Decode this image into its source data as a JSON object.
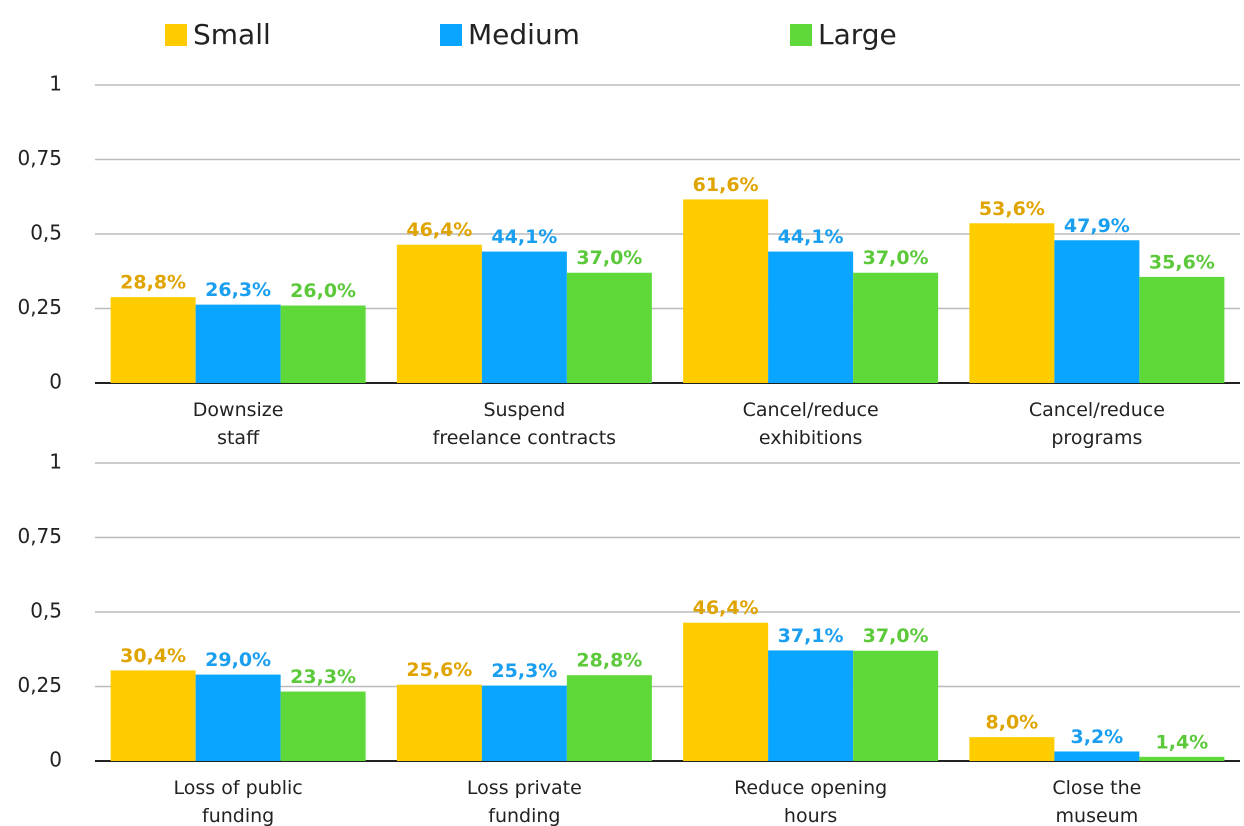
{
  "chart_data": [
    {
      "type": "bar",
      "categories": [
        [
          "Downsize",
          "staff"
        ],
        [
          "Suspend",
          "freelance contracts"
        ],
        [
          "Cancel/reduce",
          "exhibitions"
        ],
        [
          "Cancel/reduce",
          "programs"
        ]
      ],
      "series": [
        {
          "name": "Small",
          "color": "#ffcc00",
          "label_color": "#e0a400",
          "values": [
            0.288,
            0.464,
            0.616,
            0.536
          ],
          "value_labels": [
            "28,8%",
            "46,4%",
            "61,6%",
            "53,6%"
          ]
        },
        {
          "name": "Medium",
          "color": "#0aa5ff",
          "label_color": "#1a9ff0",
          "values": [
            0.263,
            0.441,
            0.441,
            0.479
          ],
          "value_labels": [
            "26,3%",
            "44,1%",
            "44,1%",
            "47,9%"
          ]
        },
        {
          "name": "Large",
          "color": "#5fd93a",
          "label_color": "#5cc93a",
          "values": [
            0.26,
            0.37,
            0.37,
            0.356
          ],
          "value_labels": [
            "26,0%",
            "37,0%",
            "37,0%",
            "35,6%"
          ]
        }
      ],
      "ylim": [
        0,
        1
      ],
      "yticks": [
        0,
        {
          "value": 0.25,
          "label": "0,25"
        },
        {
          "value": 0.5,
          "label": "0,5"
        },
        {
          "value": 0.75,
          "label": "0,75"
        },
        1
      ],
      "grid": true
    },
    {
      "type": "bar",
      "categories": [
        [
          "Loss of public",
          "funding"
        ],
        [
          "Loss private",
          "funding"
        ],
        [
          "Reduce opening",
          "hours"
        ],
        [
          "Close the",
          "museum"
        ]
      ],
      "series": [
        {
          "color": "#ffcc00",
          "label_color": "#e0a400",
          "values": [
            0.304,
            0.256,
            0.464,
            0.08
          ],
          "value_labels": [
            "30,4%",
            "25,6%",
            "46,4%",
            "8,0%"
          ]
        },
        {
          "color": "#0aa5ff",
          "label_color": "#1a9ff0",
          "values": [
            0.29,
            0.253,
            0.371,
            0.032
          ],
          "value_labels": [
            "29,0%",
            "25,3%",
            "37,1%",
            "3,2%"
          ]
        },
        {
          "color": "#5fd93a",
          "label_color": "#5cc93a",
          "values": [
            0.233,
            0.288,
            0.37,
            0.014
          ],
          "value_labels": [
            "23,3%",
            "28,8%",
            "37,0%",
            "1,4%"
          ]
        }
      ],
      "ylim": [
        0,
        1
      ],
      "yticks": [
        0,
        {
          "value": 0.25,
          "label": "0,25"
        },
        {
          "value": 0.5,
          "label": "0,5"
        },
        {
          "value": 0.75,
          "label": "0,75"
        },
        1
      ],
      "grid": true
    }
  ]
}
